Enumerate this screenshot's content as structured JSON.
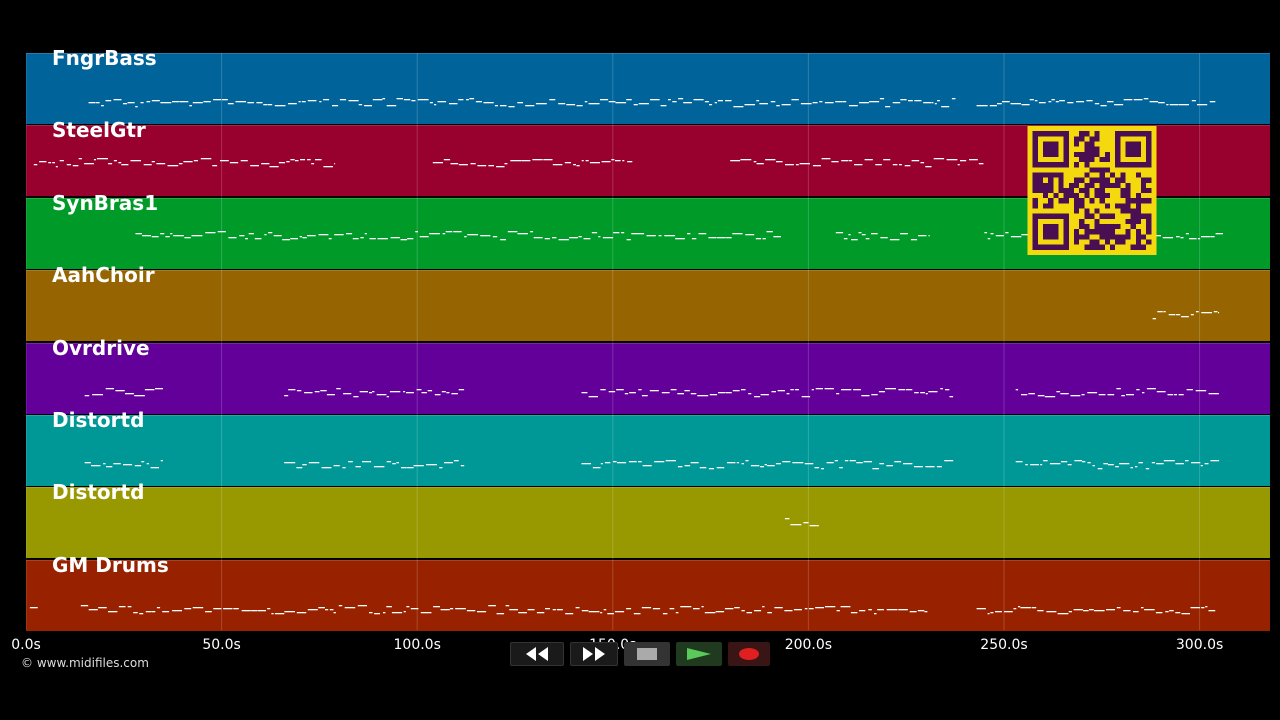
{
  "app": {
    "tracks": [
      {
        "name": "FngrBass",
        "color": "#00649b"
      },
      {
        "name": "SteelGtr",
        "color": "#98002e"
      },
      {
        "name": "SynBras1",
        "color": "#009a29"
      },
      {
        "name": "AahChoir",
        "color": "#966400"
      },
      {
        "name": "Ovrdrive",
        "color": "#620099"
      },
      {
        "name": "Distortd",
        "color": "#009896"
      },
      {
        "name": "Distortd",
        "color": "#989800"
      },
      {
        "name": "GM Drums",
        "color": "#982200"
      }
    ],
    "note_activity": [
      [
        [
          16,
          238
        ],
        [
          243,
          304
        ]
      ],
      [
        [
          2,
          79
        ],
        [
          104,
          155
        ],
        [
          180,
          245
        ]
      ],
      [
        [
          28,
          193
        ],
        [
          207,
          231
        ],
        [
          245,
          306
        ]
      ],
      [
        [
          288,
          305
        ]
      ],
      [
        [
          15,
          35
        ],
        [
          66,
          112
        ],
        [
          142,
          237
        ],
        [
          253,
          305
        ]
      ],
      [
        [
          15,
          35
        ],
        [
          66,
          112
        ],
        [
          142,
          237
        ],
        [
          253,
          305
        ]
      ],
      [
        [
          194,
          203
        ]
      ],
      [
        [
          1,
          3
        ],
        [
          14,
          231
        ],
        [
          243,
          304
        ]
      ]
    ],
    "time_axis": {
      "ticks": [
        "0.0s",
        "50.0s",
        "100.0s",
        "150.0s",
        "200.0s",
        "250.0s",
        "300.0s"
      ],
      "tick_values": [
        0,
        50,
        100,
        150,
        200,
        250,
        300
      ],
      "max_seconds": 318
    },
    "copyright": "© www.midifiles.com",
    "transport": {
      "rewind_icon": "rewind-icon",
      "fast_forward_icon": "fast-forward-icon",
      "stop_icon": "stop-icon",
      "play_icon": "play-icon",
      "record_icon": "record-icon",
      "play_color": "#3a9a3a",
      "record_color": "#e02020"
    },
    "qr_code_icon": "qr-code-icon"
  }
}
